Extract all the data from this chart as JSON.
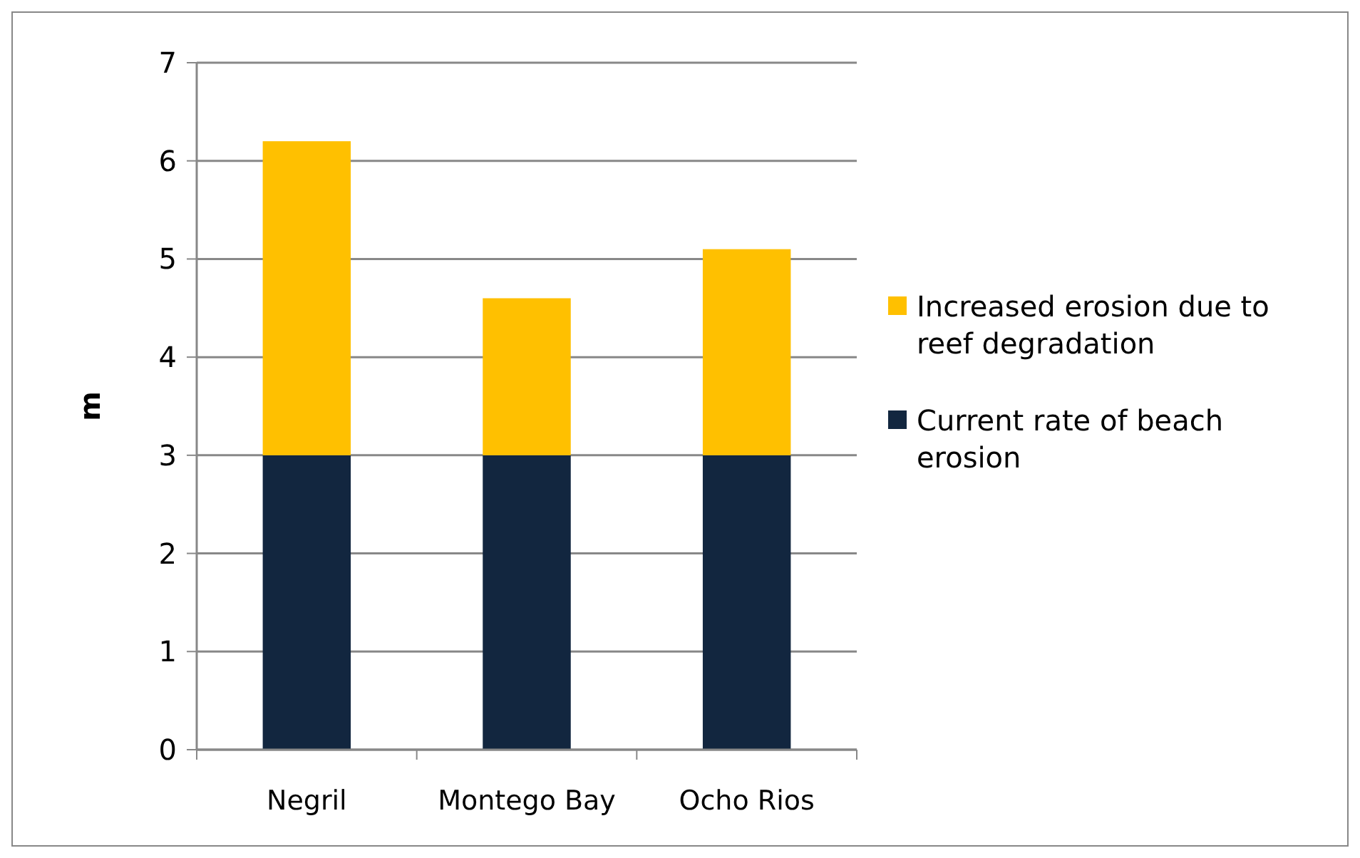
{
  "chart_data": {
    "type": "bar",
    "stacked": true,
    "ylabel": "m",
    "categories": [
      "Negril",
      "Montego Bay",
      "Ocho Rios"
    ],
    "series": [
      {
        "name": "Current rate of beach erosion",
        "color": "#12263f",
        "values": [
          3,
          3,
          3
        ]
      },
      {
        "name": "Increased erosion due to reef degradation",
        "color": "#ffc000",
        "values": [
          3.2,
          1.6,
          2.1
        ]
      }
    ],
    "ylim": [
      0,
      7
    ],
    "yticks": [
      0,
      1,
      2,
      3,
      4,
      5,
      6,
      7
    ],
    "grid": "y",
    "legend": "right"
  }
}
